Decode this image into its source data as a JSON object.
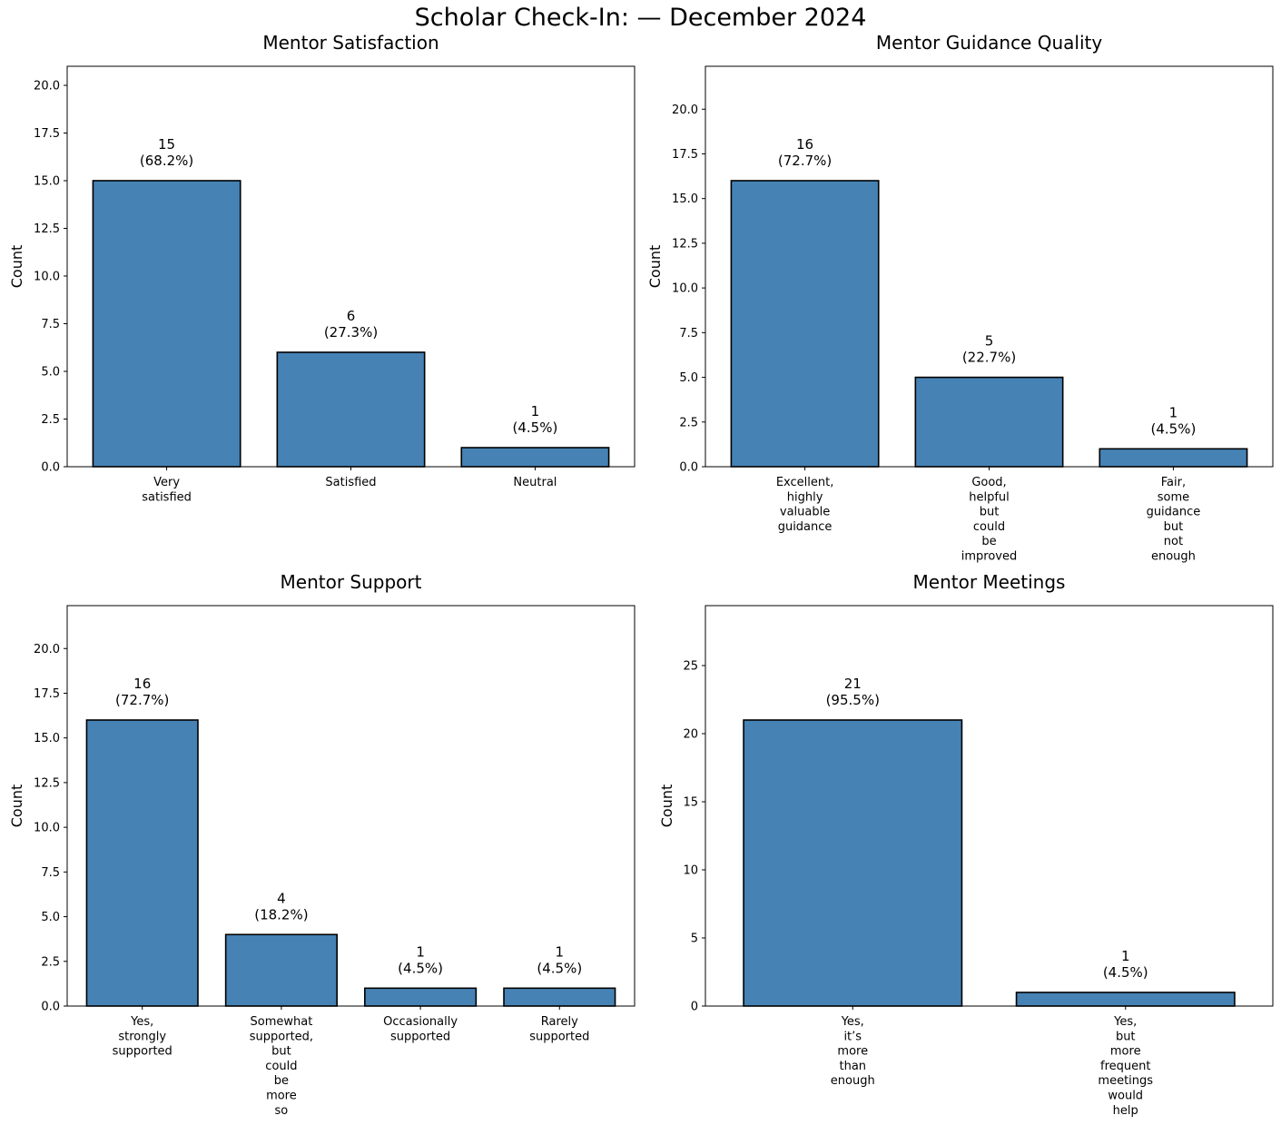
{
  "suptitle": "Scholar Check-In: — December 2024",
  "colors": {
    "bar": "#4682b4",
    "edge": "#000000"
  },
  "chart_data": [
    {
      "type": "bar",
      "title": "Mentor Satisfaction",
      "ylabel": "Count",
      "categories": [
        [
          "Very",
          "satisfied"
        ],
        [
          "Satisfied"
        ],
        [
          "Neutral"
        ]
      ],
      "values": [
        15,
        6,
        1
      ],
      "percents": [
        "(68.2%)",
        "(27.3%)",
        "(4.5%)"
      ],
      "ylim": [
        0,
        21
      ],
      "yticks": [
        "0.0",
        "2.5",
        "5.0",
        "7.5",
        "10.0",
        "12.5",
        "15.0",
        "17.5",
        "20.0"
      ],
      "ytick_values": [
        0,
        2.5,
        5,
        7.5,
        10,
        12.5,
        15,
        17.5,
        20
      ]
    },
    {
      "type": "bar",
      "title": "Mentor Guidance Quality",
      "ylabel": "Count",
      "categories": [
        [
          "Excellent,",
          "highly",
          "valuable",
          "guidance"
        ],
        [
          "Good,",
          "helpful",
          "but",
          "could",
          "be",
          "improved"
        ],
        [
          "Fair,",
          "some",
          "guidance",
          "but",
          "not",
          "enough"
        ]
      ],
      "values": [
        16,
        5,
        1
      ],
      "percents": [
        "(72.7%)",
        "(22.7%)",
        "(4.5%)"
      ],
      "ylim": [
        0,
        22.4
      ],
      "yticks": [
        "0.0",
        "2.5",
        "5.0",
        "7.5",
        "10.0",
        "12.5",
        "15.0",
        "17.5",
        "20.0"
      ],
      "ytick_values": [
        0,
        2.5,
        5,
        7.5,
        10,
        12.5,
        15,
        17.5,
        20
      ]
    },
    {
      "type": "bar",
      "title": "Mentor Support",
      "ylabel": "Count",
      "categories": [
        [
          "Yes,",
          "strongly",
          "supported"
        ],
        [
          "Somewhat",
          "supported,",
          "but",
          "could",
          "be",
          "more",
          "so"
        ],
        [
          "Occasionally",
          "supported"
        ],
        [
          "Rarely",
          "supported"
        ]
      ],
      "values": [
        16,
        4,
        1,
        1
      ],
      "percents": [
        "(72.7%)",
        "(18.2%)",
        "(4.5%)",
        "(4.5%)"
      ],
      "ylim": [
        0,
        22.4
      ],
      "yticks": [
        "0.0",
        "2.5",
        "5.0",
        "7.5",
        "10.0",
        "12.5",
        "15.0",
        "17.5",
        "20.0"
      ],
      "ytick_values": [
        0,
        2.5,
        5,
        7.5,
        10,
        12.5,
        15,
        17.5,
        20
      ]
    },
    {
      "type": "bar",
      "title": "Mentor Meetings",
      "ylabel": "Count",
      "categories": [
        [
          "Yes,",
          "it’s",
          "more",
          "than",
          "enough"
        ],
        [
          "Yes,",
          "but",
          "more",
          "frequent",
          "meetings",
          "would",
          "help"
        ]
      ],
      "values": [
        21,
        1
      ],
      "percents": [
        "(95.5%)",
        "(4.5%)"
      ],
      "ylim": [
        0,
        29.4
      ],
      "yticks": [
        "0",
        "5",
        "10",
        "15",
        "20",
        "25"
      ],
      "ytick_values": [
        0,
        5,
        10,
        15,
        20,
        25
      ]
    }
  ]
}
